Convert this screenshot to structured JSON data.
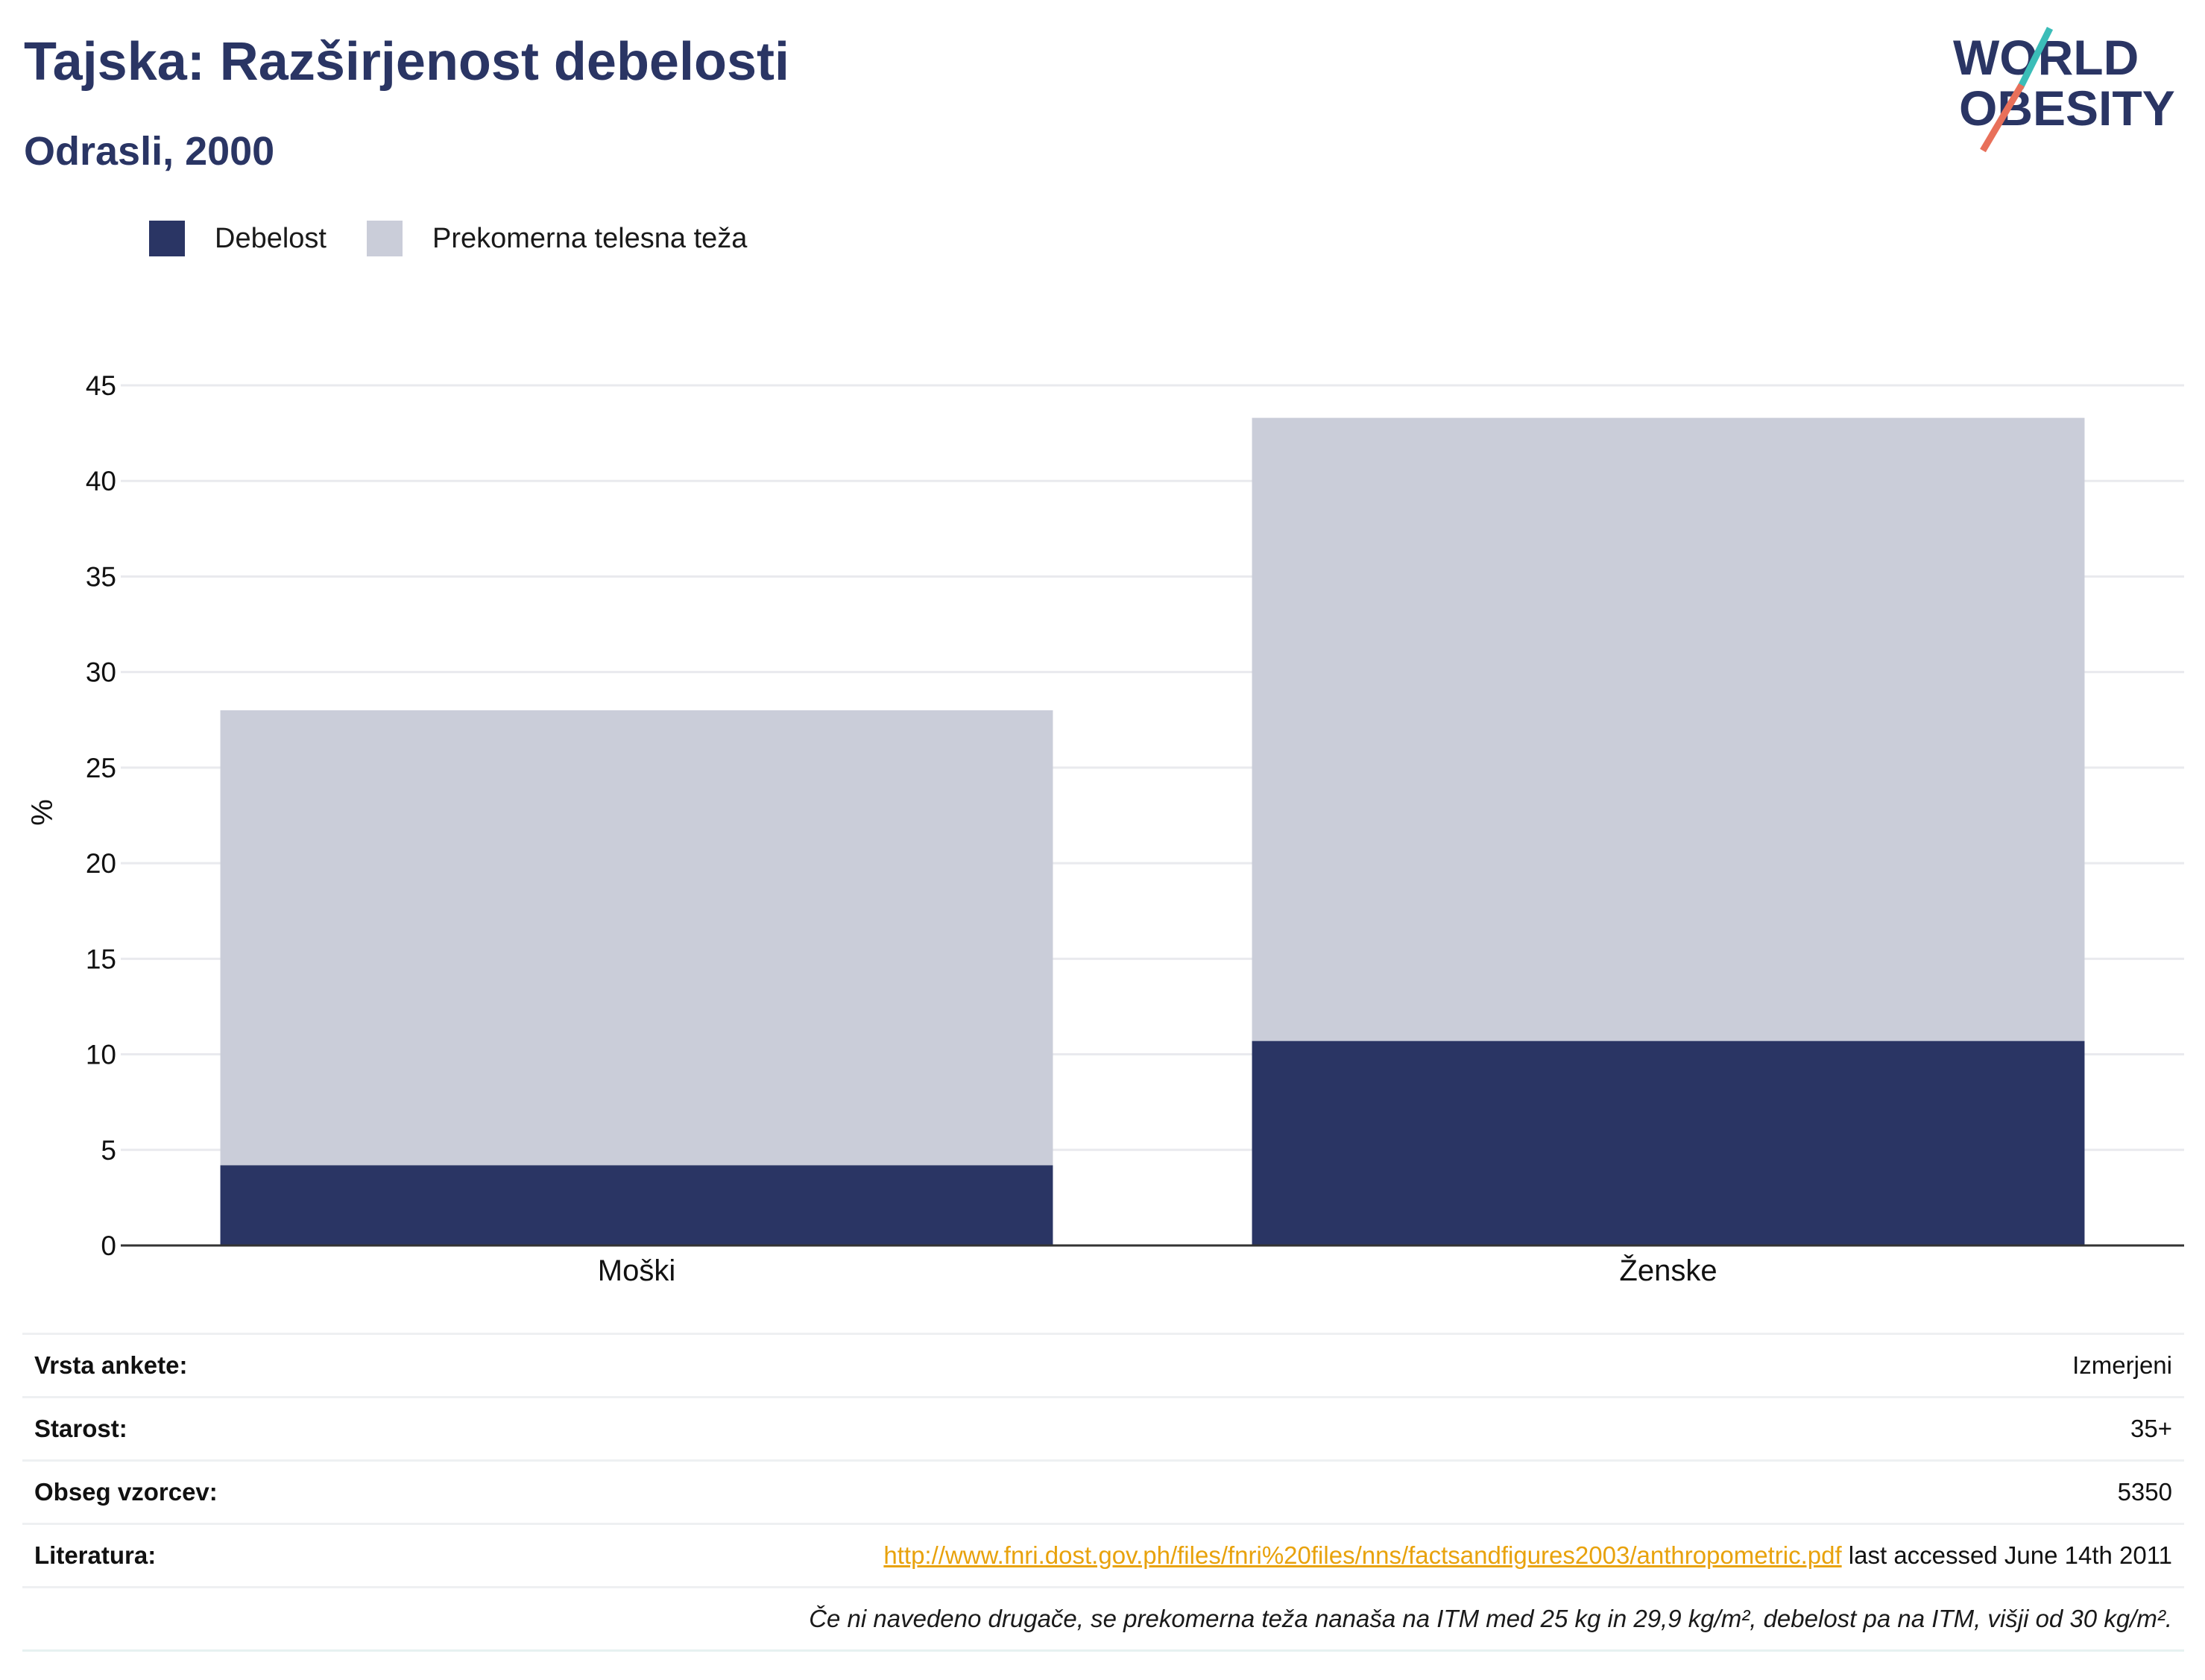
{
  "header": {
    "title": "Tajska: Razširjenost debelosti",
    "subtitle": "Odrasli, 2000"
  },
  "logo": {
    "line1": "WORLD",
    "line2": "OBESITY",
    "slash_color_top": "#3bbdb8",
    "slash_color_bottom": "#e8705a"
  },
  "colors": {
    "obesity": "#2a3564",
    "overweight": "#cacdd9",
    "text_dark": "#2a3564",
    "link": "#e8a20c"
  },
  "chart_data": {
    "type": "bar",
    "stacked": true,
    "categories": [
      "Moški",
      "Ženske"
    ],
    "series": [
      {
        "name": "Debelost",
        "values": [
          4.2,
          10.7
        ]
      },
      {
        "name": "Prekomerna telesna teža",
        "values": [
          23.8,
          32.6
        ]
      }
    ],
    "ylabel": "%",
    "ylim": [
      0,
      45
    ],
    "yticks": [
      0,
      5,
      10,
      15,
      20,
      25,
      30,
      35,
      40,
      45
    ],
    "grid": true,
    "legend_position": "top-left"
  },
  "info": {
    "rows": [
      {
        "label": "Vrsta ankete:",
        "value": "Izmerjeni"
      },
      {
        "label": "Starost:",
        "value": "35+"
      },
      {
        "label": "Obseg vzorcev:",
        "value": "5350"
      }
    ],
    "literature": {
      "label": "Literatura:",
      "link": "http://www.fnri.dost.gov.ph/files/fnri%20files/nns/factsandfigures2003/anthropometric.pdf",
      "suffix": " last accessed June 14th 2011"
    },
    "note": "Če ni navedeno drugače, se prekomerna teža nanaša na ITM med 25 kg in 29,9 kg/m², debelost pa na ITM, višji od 30 kg/m²."
  }
}
